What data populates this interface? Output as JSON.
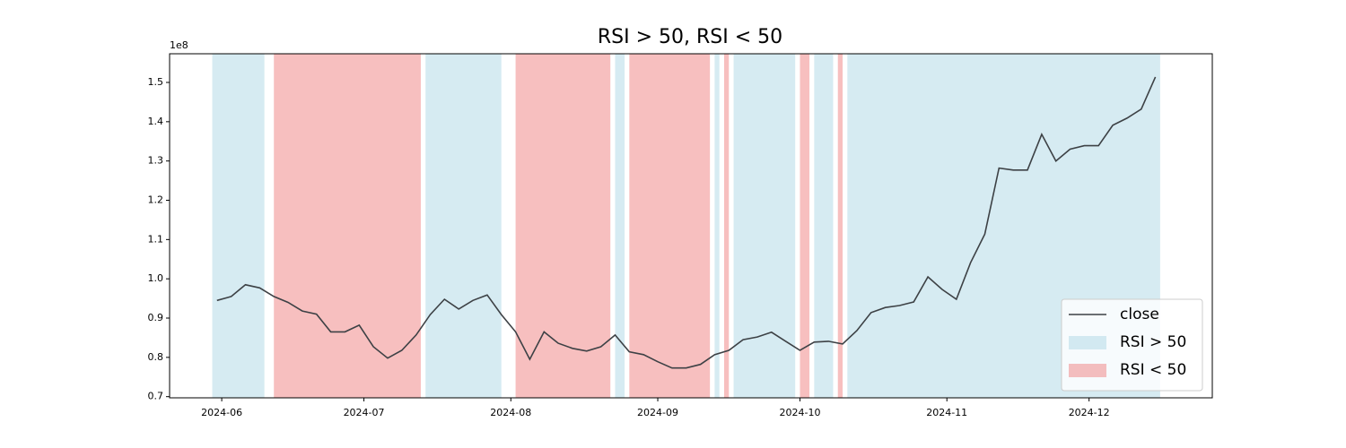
{
  "chart_data": {
    "type": "line",
    "title": "RSI > 50, RSI < 50",
    "y_offset_label": "1e8",
    "x": [
      "2024-05-31",
      "2024-06-03",
      "2024-06-06",
      "2024-06-09",
      "2024-06-12",
      "2024-06-15",
      "2024-06-18",
      "2024-06-21",
      "2024-06-24",
      "2024-06-27",
      "2024-06-30",
      "2024-07-03",
      "2024-07-06",
      "2024-07-09",
      "2024-07-12",
      "2024-07-15",
      "2024-07-18",
      "2024-07-21",
      "2024-07-24",
      "2024-07-27",
      "2024-07-30",
      "2024-08-02",
      "2024-08-05",
      "2024-08-08",
      "2024-08-11",
      "2024-08-14",
      "2024-08-17",
      "2024-08-20",
      "2024-08-23",
      "2024-08-26",
      "2024-08-29",
      "2024-09-01",
      "2024-09-04",
      "2024-09-07",
      "2024-09-10",
      "2024-09-13",
      "2024-09-16",
      "2024-09-19",
      "2024-09-22",
      "2024-09-25",
      "2024-09-28",
      "2024-10-01",
      "2024-10-04",
      "2024-10-07",
      "2024-10-10",
      "2024-10-13",
      "2024-10-16",
      "2024-10-19",
      "2024-10-22",
      "2024-10-25",
      "2024-10-28",
      "2024-10-31",
      "2024-11-03",
      "2024-11-06",
      "2024-11-09",
      "2024-11-12",
      "2024-11-15",
      "2024-11-18",
      "2024-11-21",
      "2024-11-24",
      "2024-11-27",
      "2024-11-30",
      "2024-12-03",
      "2024-12-06",
      "2024-12-09",
      "2024-12-12",
      "2024-12-15"
    ],
    "series": [
      {
        "name": "close",
        "color": "#3d4145",
        "values": [
          0.945,
          0.955,
          0.985,
          0.977,
          0.955,
          0.94,
          0.918,
          0.91,
          0.865,
          0.865,
          0.882,
          0.827,
          0.798,
          0.818,
          0.857,
          0.909,
          0.948,
          0.923,
          0.945,
          0.959,
          0.909,
          0.865,
          0.795,
          0.865,
          0.836,
          0.823,
          0.816,
          0.827,
          0.857,
          0.814,
          0.807,
          0.789,
          0.773,
          0.773,
          0.782,
          0.807,
          0.818,
          0.845,
          0.852,
          0.864,
          0.841,
          0.818,
          0.839,
          0.841,
          0.834,
          0.868,
          0.914,
          0.927,
          0.932,
          0.941,
          1.005,
          0.973,
          0.948,
          1.041,
          1.114,
          1.282,
          1.277,
          1.277,
          1.368,
          1.3,
          1.33,
          1.339,
          1.339,
          1.391,
          1.409,
          1.432,
          1.514
        ]
      }
    ],
    "spans": [
      {
        "name": "RSI > 50",
        "color": "#add8e6",
        "ranges": [
          [
            "2024-05-30",
            "2024-06-10"
          ],
          [
            "2024-07-14",
            "2024-07-30"
          ],
          [
            "2024-08-23",
            "2024-08-25"
          ],
          [
            "2024-09-13",
            "2024-09-14"
          ],
          [
            "2024-09-17",
            "2024-09-30"
          ],
          [
            "2024-10-04",
            "2024-10-08"
          ],
          [
            "2024-10-11",
            "2024-12-16"
          ]
        ]
      },
      {
        "name": "RSI < 50",
        "color": "#f08080",
        "ranges": [
          [
            "2024-06-12",
            "2024-07-13"
          ],
          [
            "2024-08-02",
            "2024-08-22"
          ],
          [
            "2024-08-26",
            "2024-09-12"
          ],
          [
            "2024-09-15",
            "2024-09-16"
          ],
          [
            "2024-10-01",
            "2024-10-03"
          ],
          [
            "2024-10-09",
            "2024-10-10"
          ]
        ]
      }
    ],
    "xlim": [
      "2024-05-21",
      "2024-12-27"
    ],
    "xticks": [
      {
        "value": "2024-06-01",
        "label": "2024-06"
      },
      {
        "value": "2024-07-01",
        "label": "2024-07"
      },
      {
        "value": "2024-08-01",
        "label": "2024-08"
      },
      {
        "value": "2024-09-01",
        "label": "2024-09"
      },
      {
        "value": "2024-10-01",
        "label": "2024-10"
      },
      {
        "value": "2024-11-01",
        "label": "2024-11"
      },
      {
        "value": "2024-12-01",
        "label": "2024-12"
      }
    ],
    "ylim": [
      0.697,
      1.573
    ],
    "yticks": [
      0.7,
      0.8,
      0.9,
      {
        "value": 1,
        "label": "1.0"
      },
      1.1,
      1.2,
      1.3,
      1.4,
      1.5
    ],
    "legend": "lower right"
  }
}
